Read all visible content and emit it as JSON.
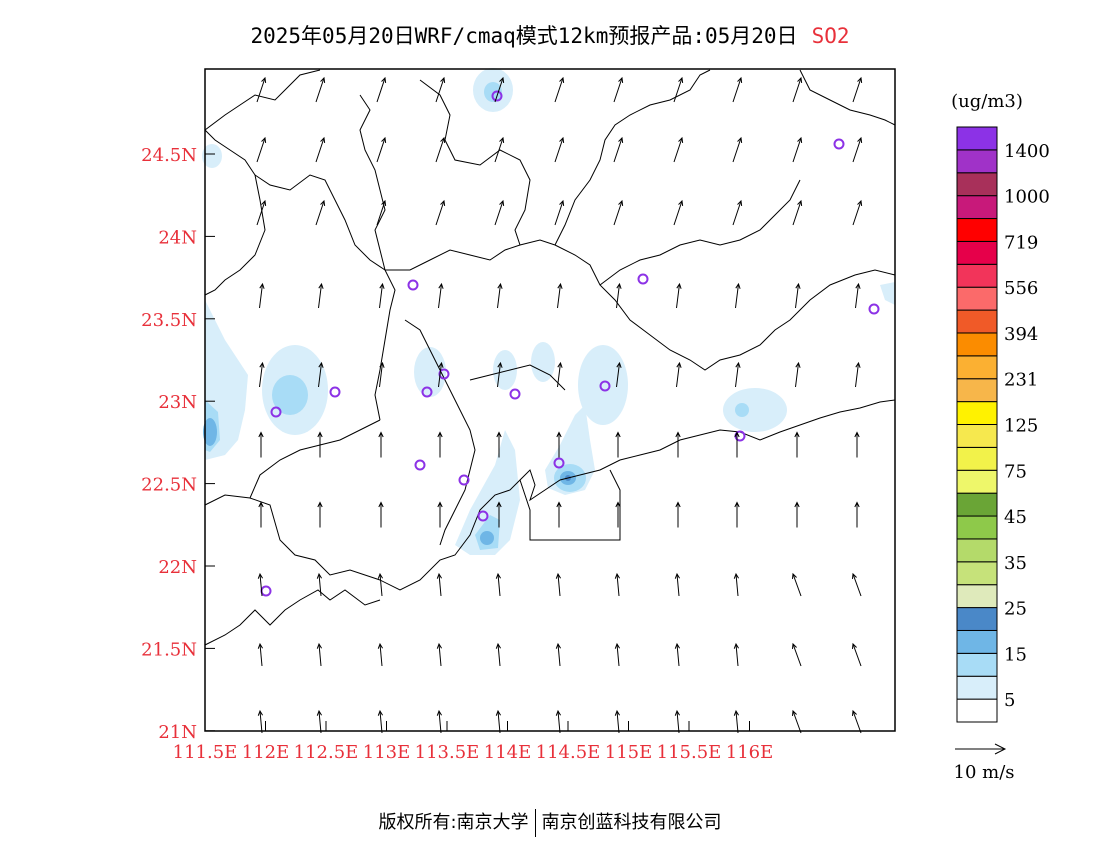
{
  "title": {
    "main": "2025年05月20日WRF/cmaq模式12km预报产品:05月20日",
    "pollutant": "SO2"
  },
  "axes": {
    "lat_labels": [
      "24.5N",
      "24N",
      "23.5N",
      "23N",
      "22.5N",
      "22N",
      "21.5N",
      "21N"
    ],
    "lon_labels": [
      "111.5E",
      "112E",
      "112.5E",
      "113E",
      "113.5E",
      "114E",
      "114.5E",
      "115E",
      "115.5E",
      "116E"
    ],
    "label_color": "#e8303a"
  },
  "colorbar": {
    "unit": "(ug/m3)",
    "colors": [
      "#ffffff",
      "#d8eefa",
      "#a8dcf6",
      "#6fb6e6",
      "#4a88c8",
      "#dfeabb",
      "#c6e27a",
      "#b4da6a",
      "#8ec94a",
      "#6aa536",
      "#eef76a",
      "#f2f24a",
      "#f6e84e",
      "#fff200",
      "#f7b64a",
      "#fbb032",
      "#fb8c00",
      "#f05a28",
      "#fb6a6a",
      "#f2345a",
      "#e6004a",
      "#ff0000",
      "#c8197a",
      "#a8305a",
      "#a032c8",
      "#8c32e6"
    ],
    "tick_labels": [
      "5",
      "15",
      "25",
      "35",
      "45",
      "75",
      "125",
      "231",
      "394",
      "556",
      "719",
      "1000",
      "1400"
    ]
  },
  "wind_legend": {
    "label": "10 m/s"
  },
  "footer": {
    "left": "版权所有:南京大学",
    "right": "南京创蓝科技有限公司"
  },
  "map_colors": {
    "so2_light": "#d8eefa",
    "so2_mid": "#a8dcf6",
    "so2_dark": "#6fb6e6",
    "so2_darker": "#4a88c8",
    "station_ring": "#8c32e6"
  }
}
